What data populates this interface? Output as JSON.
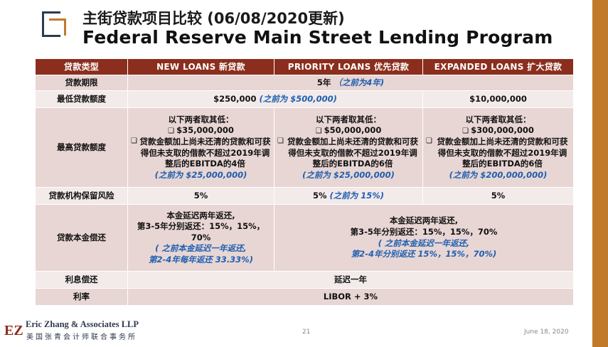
{
  "header": {
    "title_cn": "主街贷款项目比较 (06/08/2020更新)",
    "title_en": "Federal Reserve Main Street Lending Program"
  },
  "table": {
    "headers": [
      "贷款类型",
      "NEW LOANS 新贷款",
      "PRIORITY LOANS 优先贷款",
      "EXPANDED LOANS 扩大贷款"
    ],
    "term": {
      "label": "贷款期限",
      "value": "5年",
      "note": "（之前为4年)"
    },
    "min": {
      "label": "最低贷款额度",
      "value": "$250,000",
      "note": "(之前为 $500,000)",
      "expanded": "$10,000,000"
    },
    "max": {
      "label": "最高贷款额度",
      "intro": "以下两者取其低：",
      "new": {
        "amount": "$35,000,000",
        "rule": "贷款金额加上尚未还清的贷款和可获得但未支取的借款不超过2019年调整后的EBITDA的4倍",
        "note": "(之前为 $25,000,000)"
      },
      "priority": {
        "amount": "$50,000,000",
        "rule": "贷款金额加上尚未还清的贷款和可获得但未支取的借款不超过2019年调整后的EBITDA的6倍",
        "note": "(之前为 $25,000,000)"
      },
      "expanded": {
        "amount": "$300,000,000",
        "rule": "贷款金额加上尚未还清的贷款和可获得但未支取的借款不超过2019年调整后的EBITDA的6倍",
        "note": "(之前为 $200,000,000)"
      }
    },
    "risk": {
      "label": "贷款机构保留风险",
      "new": "5%",
      "priority": "5%",
      "priority_note": "(之前为 15%)",
      "expanded": "5%"
    },
    "repay": {
      "label": "贷款本金偿还",
      "new_l1": "本金延迟两年返还,",
      "new_l2": "第3-5年分别返还：15%，15%，",
      "new_l3": "70%",
      "new_n1": "( 之前本金延迟一年返还,",
      "new_n2": "第2-4年每年返还 33.33%)",
      "other_l1": "本金延迟两年返还,",
      "other_l2": "第3-5年分别返还：15%，15%，70%",
      "other_n1": "( 之前本金延迟一年返还,",
      "other_n2": "第2-4年分别返还 15%，15%，70%)"
    },
    "interest": {
      "label": "利息偿还",
      "value": "延迟一年"
    },
    "rate": {
      "label": "利率",
      "value": "LIBOR + 3%"
    }
  },
  "footer": {
    "logo": "EZ",
    "company_en": "Eric Zhang & Associates LLP",
    "company_cn": "美国张青会计师联合事务所",
    "page": "21",
    "date": "June 18, 2020"
  },
  "colors": {
    "header_bg": "#8b2e1d",
    "row_a": "#e8d6d4",
    "row_b": "#f3eaea",
    "accent": "#c07a2a",
    "note": "#1f5fb0"
  }
}
